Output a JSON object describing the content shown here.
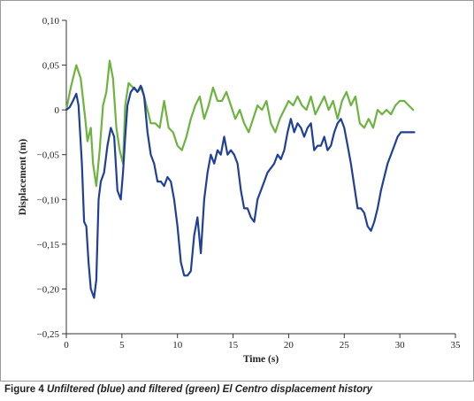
{
  "caption": {
    "figure_label": "Figure 4",
    "text": "Unfiltered (blue) and filtered (green) El Centro displacement history"
  },
  "chart_data": {
    "type": "line",
    "title": "",
    "xlabel": "Time (s)",
    "ylabel": "Displacement (m)",
    "xlim": [
      0,
      35
    ],
    "ylim": [
      -0.25,
      0.1
    ],
    "x_ticks": [
      0,
      5,
      10,
      15,
      20,
      25,
      30,
      35
    ],
    "x_tick_labels": [
      "0",
      "5",
      "10",
      "15",
      "20",
      "25",
      "30",
      "35"
    ],
    "y_ticks": [
      0.1,
      0.05,
      0,
      -0.05,
      -0.1,
      -0.15,
      -0.2,
      -0.25
    ],
    "y_tick_labels": [
      "0,10",
      "0,05",
      "0",
      "−0,05",
      "−0,10",
      "−0,15",
      "−0,20",
      "−0,25"
    ],
    "grid": false,
    "legend": "none",
    "series": [
      {
        "color": "#6db33f",
        "x": [
          0,
          0.4,
          0.9,
          1.3,
          1.7,
          1.9,
          2.2,
          2.4,
          2.7,
          3.0,
          3.3,
          3.6,
          3.9,
          4.2,
          4.5,
          4.8,
          5.1,
          5.3,
          5.6,
          6.0,
          6.4,
          6.8,
          7.2,
          7.6,
          8.0,
          8.4,
          8.8,
          9.2,
          9.6,
          10.0,
          10.4,
          10.8,
          11.2,
          11.6,
          12.0,
          12.4,
          12.8,
          13.2,
          13.6,
          14.0,
          14.4,
          14.8,
          15.2,
          15.6,
          16.0,
          16.4,
          16.8,
          17.2,
          17.6,
          18.0,
          18.4,
          18.8,
          19.2,
          19.6,
          20.0,
          20.4,
          20.8,
          21.2,
          21.6,
          22.0,
          22.4,
          22.8,
          23.2,
          23.6,
          24.0,
          24.4,
          24.8,
          25.2,
          25.6,
          26.0,
          26.4,
          26.8,
          27.2,
          27.6,
          28.0,
          28.4,
          28.8,
          29.2,
          29.6,
          30.0,
          30.4,
          30.8,
          31.2
        ],
        "y": [
          0.0,
          0.025,
          0.05,
          0.035,
          -0.01,
          -0.035,
          -0.02,
          -0.06,
          -0.085,
          -0.045,
          0.005,
          0.02,
          0.055,
          0.035,
          -0.02,
          -0.045,
          -0.06,
          0.005,
          0.03,
          0.025,
          0.02,
          0.025,
          0.005,
          -0.015,
          -0.015,
          -0.02,
          0.01,
          -0.02,
          -0.025,
          -0.04,
          -0.045,
          -0.03,
          -0.01,
          0.005,
          0.015,
          -0.01,
          0.005,
          0.025,
          0.01,
          0.01,
          0.02,
          0.005,
          -0.01,
          0.0,
          -0.015,
          -0.025,
          -0.01,
          0.005,
          0.0,
          0.01,
          -0.015,
          -0.025,
          -0.01,
          0.0,
          0.01,
          0.005,
          0.015,
          0.005,
          0.0,
          0.015,
          -0.005,
          0.005,
          0.015,
          0.0,
          0.01,
          -0.01,
          0.01,
          0.02,
          0.005,
          0.015,
          -0.015,
          -0.02,
          -0.01,
          -0.02,
          0.0,
          -0.005,
          0.0,
          -0.005,
          0.005,
          0.01,
          0.01,
          0.005,
          0.0
        ]
      },
      {
        "color": "#1f3f99",
        "x": [
          0,
          0.3,
          0.6,
          0.9,
          1.1,
          1.4,
          1.6,
          1.8,
          2.0,
          2.2,
          2.5,
          2.7,
          2.9,
          3.1,
          3.4,
          3.7,
          4.0,
          4.3,
          4.6,
          4.9,
          5.1,
          5.3,
          5.5,
          5.8,
          6.1,
          6.4,
          6.7,
          7.0,
          7.3,
          7.6,
          7.9,
          8.2,
          8.5,
          8.8,
          9.1,
          9.4,
          9.7,
          10.0,
          10.3,
          10.6,
          10.9,
          11.2,
          11.5,
          11.8,
          12.1,
          12.4,
          12.7,
          13.0,
          13.3,
          13.6,
          13.9,
          14.2,
          14.5,
          14.8,
          15.1,
          15.4,
          15.7,
          16.0,
          16.3,
          16.6,
          16.9,
          17.2,
          17.5,
          17.8,
          18.1,
          18.4,
          18.7,
          19.0,
          19.3,
          19.6,
          19.9,
          20.2,
          20.5,
          20.8,
          21.1,
          21.4,
          21.7,
          22.0,
          22.3,
          22.6,
          22.9,
          23.2,
          23.5,
          23.8,
          24.1,
          24.4,
          24.7,
          25.0,
          25.3,
          25.6,
          25.9,
          26.2,
          26.5,
          26.8,
          27.1,
          27.4,
          27.7,
          28.0,
          28.3,
          28.6,
          28.9,
          29.2,
          29.5,
          29.8,
          30.1,
          30.4,
          30.7,
          31.0,
          31.3
        ],
        "y": [
          0.0,
          0.003,
          0.01,
          0.018,
          0.005,
          -0.06,
          -0.125,
          -0.13,
          -0.17,
          -0.2,
          -0.21,
          -0.19,
          -0.1,
          -0.08,
          -0.07,
          -0.04,
          -0.02,
          -0.03,
          -0.09,
          -0.1,
          -0.07,
          -0.03,
          0.005,
          0.02,
          0.025,
          0.02,
          0.027,
          0.015,
          -0.025,
          -0.05,
          -0.06,
          -0.08,
          -0.08,
          -0.085,
          -0.075,
          -0.08,
          -0.1,
          -0.13,
          -0.17,
          -0.185,
          -0.185,
          -0.18,
          -0.14,
          -0.12,
          -0.16,
          -0.1,
          -0.07,
          -0.05,
          -0.06,
          -0.045,
          -0.05,
          -0.03,
          -0.05,
          -0.045,
          -0.05,
          -0.06,
          -0.09,
          -0.11,
          -0.11,
          -0.12,
          -0.125,
          -0.1,
          -0.09,
          -0.08,
          -0.07,
          -0.065,
          -0.06,
          -0.05,
          -0.055,
          -0.045,
          -0.025,
          -0.01,
          -0.025,
          -0.015,
          -0.02,
          -0.03,
          -0.02,
          -0.015,
          -0.045,
          -0.04,
          -0.04,
          -0.03,
          -0.045,
          -0.04,
          -0.025,
          -0.015,
          -0.01,
          -0.02,
          -0.04,
          -0.06,
          -0.085,
          -0.11,
          -0.11,
          -0.115,
          -0.13,
          -0.135,
          -0.125,
          -0.11,
          -0.09,
          -0.075,
          -0.06,
          -0.05,
          -0.04,
          -0.03,
          -0.025,
          -0.025,
          -0.025,
          -0.025,
          -0.025
        ]
      }
    ]
  }
}
